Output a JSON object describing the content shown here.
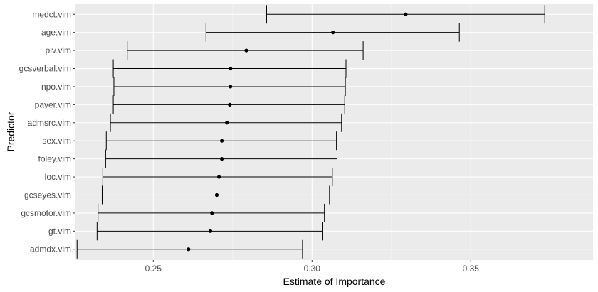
{
  "chart_data": {
    "type": "scatter",
    "subtype": "point-range",
    "title": "",
    "xlabel": "Estimate of Importance",
    "ylabel": "Predictor",
    "xlim": [
      0.2255,
      0.3885
    ],
    "x_ticks": [
      0.25,
      0.3,
      0.35
    ],
    "x_tick_labels": [
      "0.25",
      "0.30",
      "0.35"
    ],
    "grid": true,
    "colors": {
      "panel": "#ebebeb",
      "grid_major": "#ffffff",
      "grid_minor": "#f4f4f4",
      "mark": "#000000"
    },
    "series": [
      {
        "name": "medct.vim",
        "estimate": 0.3295,
        "lower": 0.2857,
        "upper": 0.3733
      },
      {
        "name": "age.vim",
        "estimate": 0.3066,
        "lower": 0.2666,
        "upper": 0.3464
      },
      {
        "name": "piv.vim",
        "estimate": 0.2793,
        "lower": 0.2418,
        "upper": 0.3161
      },
      {
        "name": "gcsverbal.vim",
        "estimate": 0.2743,
        "lower": 0.2374,
        "upper": 0.3107
      },
      {
        "name": "npo.vim",
        "estimate": 0.2743,
        "lower": 0.2376,
        "upper": 0.3105
      },
      {
        "name": "payer.vim",
        "estimate": 0.2741,
        "lower": 0.2374,
        "upper": 0.3103
      },
      {
        "name": "admsrc.vim",
        "estimate": 0.2732,
        "lower": 0.2365,
        "upper": 0.3093
      },
      {
        "name": "sex.vim",
        "estimate": 0.2716,
        "lower": 0.2352,
        "upper": 0.3077
      },
      {
        "name": "foley.vim",
        "estimate": 0.2716,
        "lower": 0.235,
        "upper": 0.3079
      },
      {
        "name": "loc.vim",
        "estimate": 0.2707,
        "lower": 0.2341,
        "upper": 0.3064
      },
      {
        "name": "gcseyes.vim",
        "estimate": 0.27,
        "lower": 0.2339,
        "upper": 0.3055
      },
      {
        "name": "gcsmotor.vim",
        "estimate": 0.2685,
        "lower": 0.2326,
        "upper": 0.3039
      },
      {
        "name": "gt.vim",
        "estimate": 0.268,
        "lower": 0.2323,
        "upper": 0.3034
      },
      {
        "name": "admdx.vim",
        "estimate": 0.2611,
        "lower": 0.226,
        "upper": 0.297
      }
    ]
  }
}
